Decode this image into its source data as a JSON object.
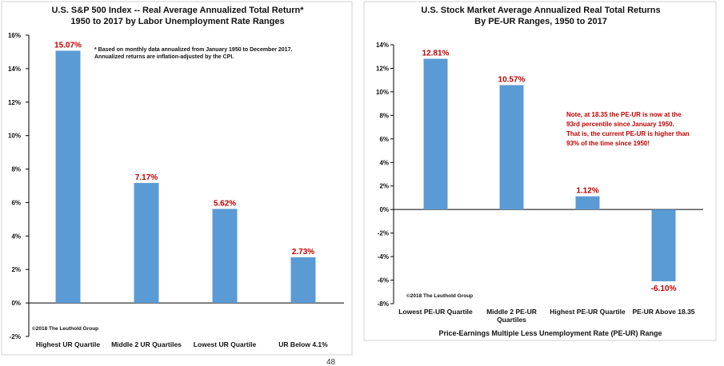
{
  "chart_data": [
    {
      "type": "bar",
      "title": [
        "U.S. S&P 500 Index -- Real Average Annualized Total Return*",
        "1950 to 2017 by Labor Unemployment Rate Ranges"
      ],
      "categories": [
        "Highest UR Quartile",
        "Middle 2 UR Quartiles",
        "Lowest UR Quartile",
        "UR Below 4.1%"
      ],
      "values": [
        15.07,
        7.17,
        5.62,
        2.73
      ],
      "data_labels": [
        "15.07%",
        "7.17%",
        "5.62%",
        "2.73%"
      ],
      "ylim": [
        -2,
        16
      ],
      "yticks": [
        -2,
        0,
        2,
        4,
        6,
        8,
        10,
        12,
        14,
        16
      ],
      "ytick_labels": [
        "-2%",
        "0%",
        "2%",
        "4%",
        "6%",
        "8%",
        "10%",
        "12%",
        "14%",
        "16%"
      ],
      "xlabel": "",
      "ylabel": "",
      "notes": [
        "* Based on monthly data annualized from January 1950 to December 2017.",
        "Annualized returns are inflation-adjusted by the CPI."
      ],
      "credit": "©2018 The Leuthold Group",
      "bar_color": "#5b9bd5",
      "label_color": "#c00000"
    },
    {
      "type": "bar",
      "title": [
        "U.S. Stock Market Average Annualized Real Total Returns",
        "By PE-UR Ranges, 1950 to 2017"
      ],
      "categories": [
        [
          "Lowest PE-UR Quartile"
        ],
        [
          "Middle 2 PE-UR",
          "Quartiles"
        ],
        [
          "Highest PE-UR Quartile"
        ],
        [
          "PE-UR Above 18.35"
        ]
      ],
      "values": [
        12.81,
        10.57,
        1.12,
        -6.1
      ],
      "data_labels": [
        "12.81%",
        "10.57%",
        "1.12%",
        "-6.10%"
      ],
      "ylim": [
        -8,
        14
      ],
      "yticks": [
        -8,
        -6,
        -4,
        -2,
        0,
        2,
        4,
        6,
        8,
        10,
        12,
        14
      ],
      "ytick_labels": [
        "-8%",
        "-6%",
        "-4%",
        "-2%",
        "0%",
        "2%",
        "4%",
        "6%",
        "8%",
        "10%",
        "12%",
        "14%"
      ],
      "xlabel": "Price-Earnings Multiple Less Unemployment Rate (PE-UR) Range",
      "ylabel": "",
      "notes": [
        "Note, at 18.35 the PE-UR is now at the",
        "93rd percentile since January 1950.",
        "That is, the current PE-UR is higher than",
        "93% of the time since 1950!"
      ],
      "credit": "©2018 The Leuthold Group",
      "bar_color": "#5b9bd5",
      "label_color": "#c00000"
    }
  ],
  "page": {
    "number": "48"
  }
}
